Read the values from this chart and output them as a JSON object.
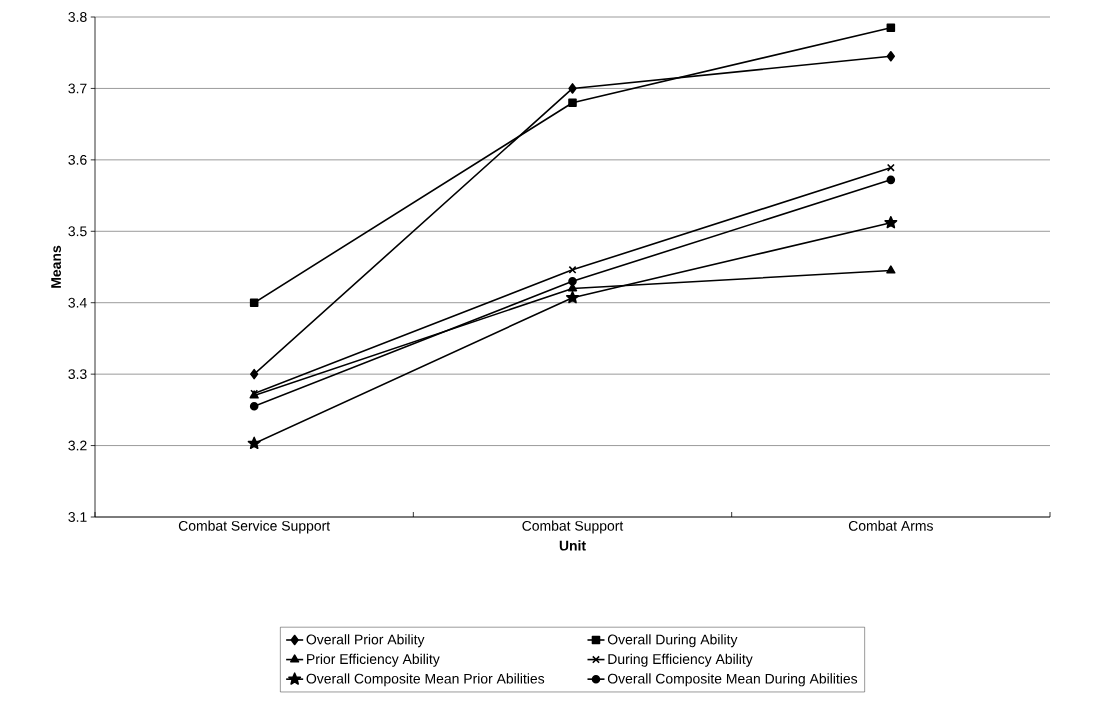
{
  "chart_data": {
    "type": "line",
    "xlabel": "Unit",
    "ylabel": "Means",
    "categories": [
      "Combat Service Support",
      "Combat Support",
      "Combat Arms"
    ],
    "series": [
      {
        "name": "Overall Prior Ability",
        "color": "#000000",
        "marker": "diamond",
        "values": [
          3.3,
          3.7,
          3.745
        ]
      },
      {
        "name": "Overall During Ability",
        "color": "#000000",
        "marker": "square",
        "values": [
          3.4,
          3.68,
          3.785
        ]
      },
      {
        "name": "Prior Efficiency Ability",
        "color": "#000000",
        "marker": "triangle",
        "values": [
          3.27,
          3.42,
          3.445
        ]
      },
      {
        "name": "During Efficiency Ability",
        "color": "#000000",
        "marker": "cross",
        "values": [
          3.273,
          3.446,
          3.589
        ]
      },
      {
        "name": "Overall Composite Mean Prior Abilities",
        "color": "#000000",
        "marker": "star",
        "values": [
          3.203,
          3.407,
          3.512
        ]
      },
      {
        "name": "Overall Composite Mean During Abilities",
        "color": "#000000",
        "marker": "circle",
        "values": [
          3.255,
          3.43,
          3.572
        ]
      }
    ],
    "ylim": [
      3.1,
      3.8
    ],
    "yticks": [
      3.1,
      3.2,
      3.3,
      3.4,
      3.5,
      3.6,
      3.7,
      3.8
    ],
    "grid": "y",
    "legend": "bottom",
    "line_style": "solid"
  }
}
